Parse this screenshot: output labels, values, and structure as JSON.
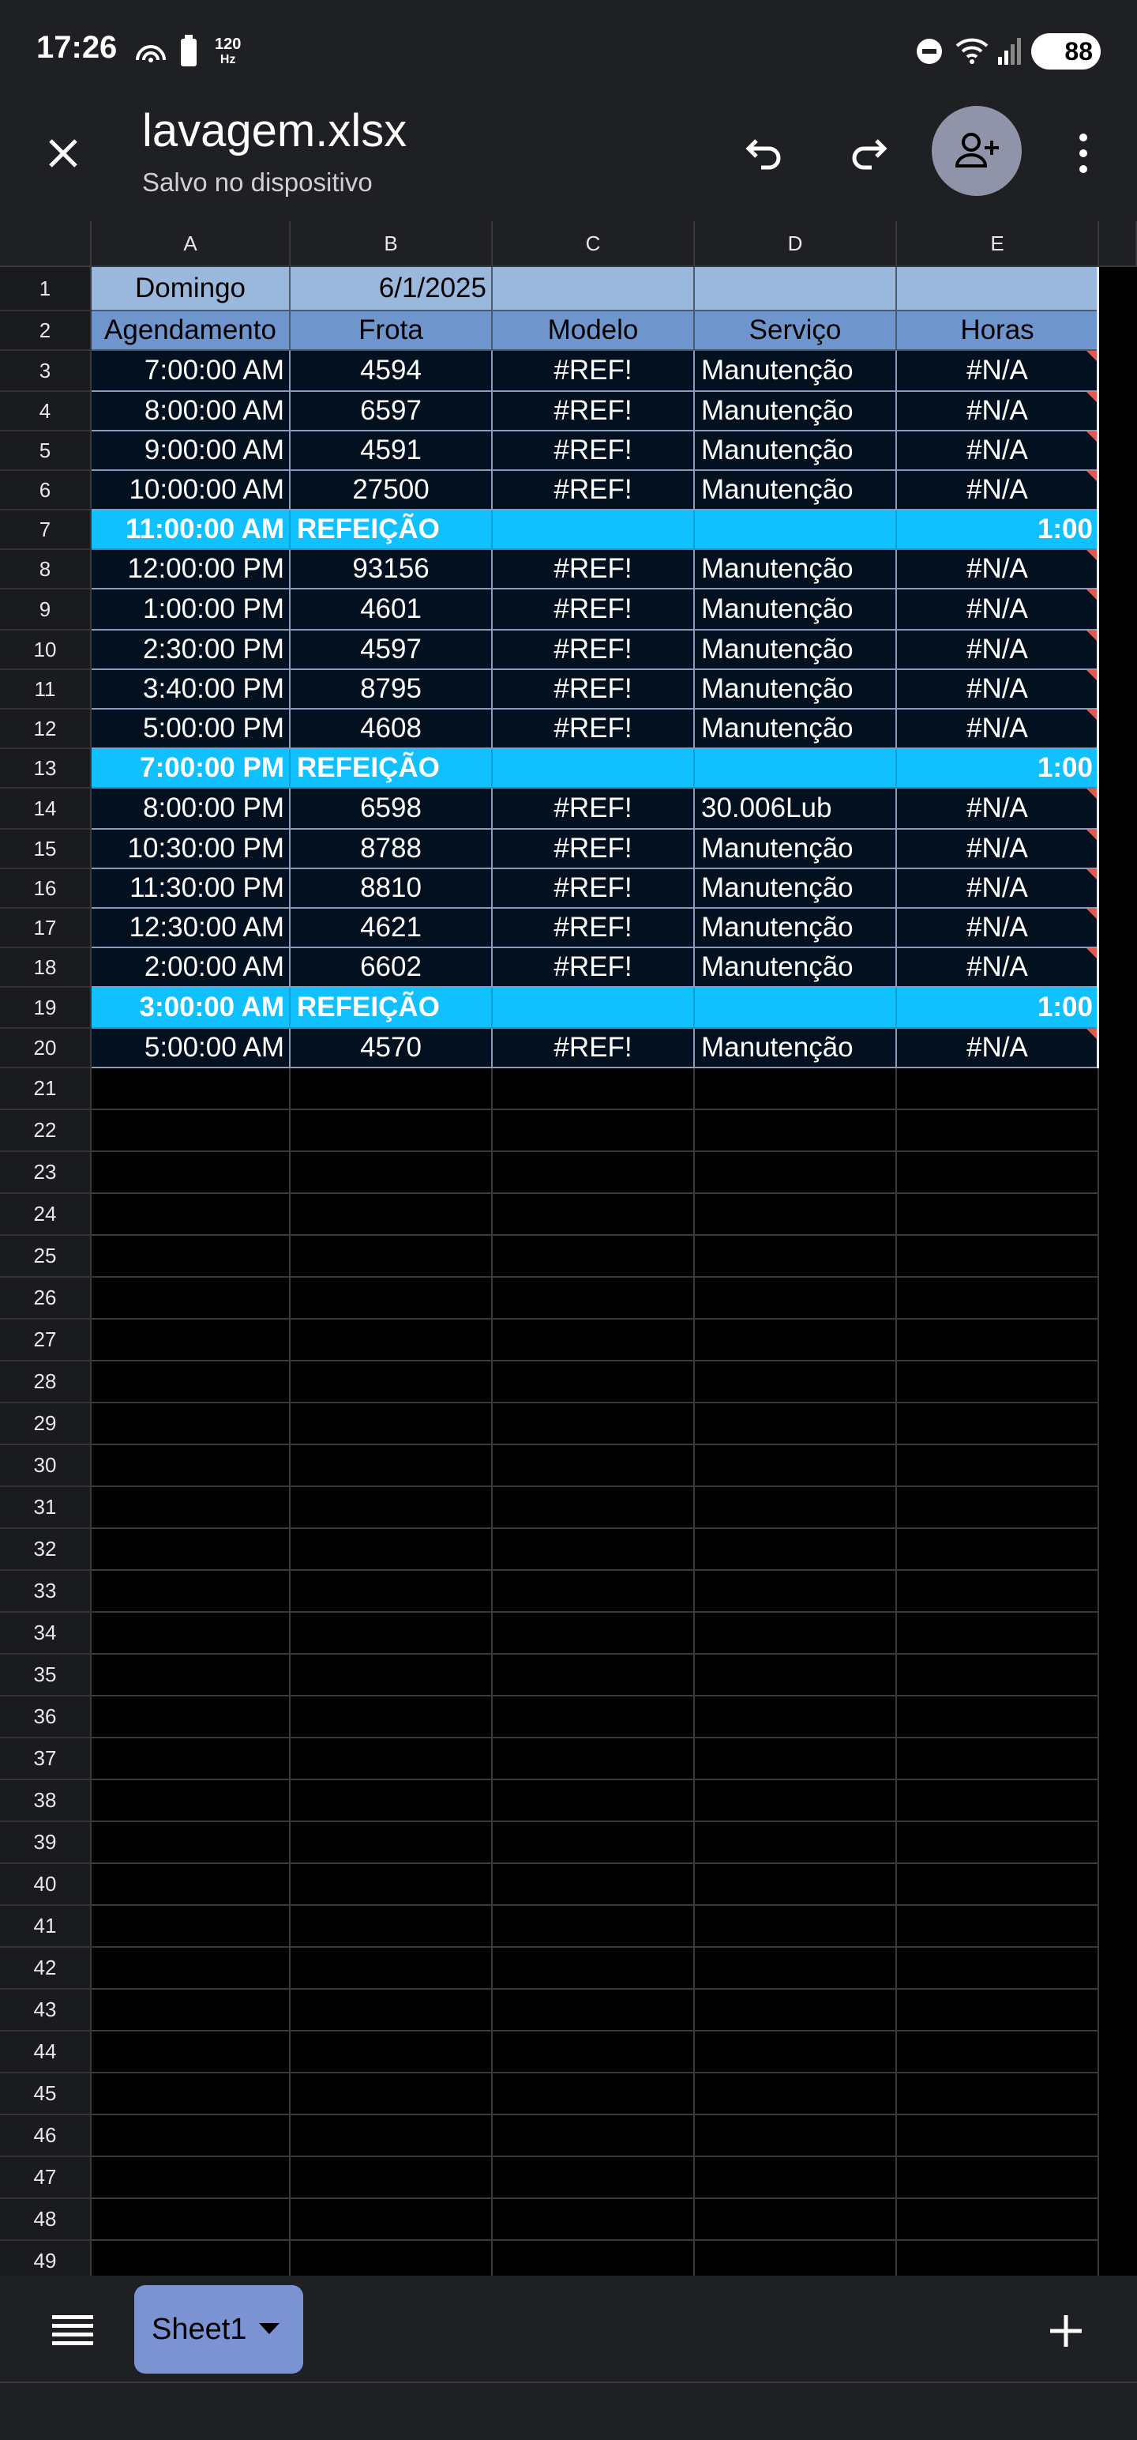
{
  "status": {
    "time": "17:26",
    "hz_top": "120",
    "hz_bottom": "Hz",
    "battery": "88"
  },
  "header": {
    "filename": "lavagem.xlsx",
    "subtitle": "Salvo no dispositivo"
  },
  "columns": [
    "A",
    "B",
    "C",
    "D",
    "E"
  ],
  "row_numbers": [
    "1",
    "2",
    "3",
    "4",
    "5",
    "6",
    "7",
    "8",
    "9",
    "10",
    "11",
    "12",
    "13",
    "14",
    "15",
    "16",
    "17",
    "18",
    "19",
    "20",
    "21",
    "22",
    "23",
    "24",
    "25",
    "26",
    "27",
    "28",
    "29",
    "30",
    "31",
    "32",
    "33",
    "34",
    "35",
    "36",
    "37",
    "38",
    "39",
    "40",
    "41",
    "42",
    "43",
    "44",
    "45",
    "46",
    "47",
    "48",
    "49"
  ],
  "sheet": {
    "title_row": [
      "Domingo",
      "6/1/2025",
      "",
      "",
      ""
    ],
    "header_row": [
      "Agendamento",
      "Frota",
      "Modelo",
      "Serviço",
      "Horas"
    ],
    "rows": [
      [
        "7:00:00 AM",
        "4594",
        "#REF!",
        "Manutenção",
        "#N/A"
      ],
      [
        "8:00:00 AM",
        "6597",
        "#REF!",
        "Manutenção",
        "#N/A"
      ],
      [
        "9:00:00 AM",
        "4591",
        "#REF!",
        "Manutenção",
        "#N/A"
      ],
      [
        "10:00:00 AM",
        "27500",
        "#REF!",
        "Manutenção",
        "#N/A"
      ],
      [
        "11:00:00 AM",
        "REFEIÇÃO",
        "",
        "",
        "1:00"
      ],
      [
        "12:00:00 PM",
        "93156",
        "#REF!",
        "Manutenção",
        "#N/A"
      ],
      [
        "1:00:00 PM",
        "4601",
        "#REF!",
        "Manutenção",
        "#N/A"
      ],
      [
        "2:30:00 PM",
        "4597",
        "#REF!",
        "Manutenção",
        "#N/A"
      ],
      [
        "3:40:00 PM",
        "8795",
        "#REF!",
        "Manutenção",
        "#N/A"
      ],
      [
        "5:00:00 PM",
        "4608",
        "#REF!",
        "Manutenção",
        "#N/A"
      ],
      [
        "7:00:00 PM",
        "REFEIÇÃO",
        "",
        "",
        "1:00"
      ],
      [
        "8:00:00 PM",
        "6598",
        "#REF!",
        "30.006Lub",
        "#N/A"
      ],
      [
        "10:30:00 PM",
        "8788",
        "#REF!",
        "Manutenção",
        "#N/A"
      ],
      [
        "11:30:00 PM",
        "8810",
        "#REF!",
        "Manutenção",
        "#N/A"
      ],
      [
        "12:30:00 AM",
        "4621",
        "#REF!",
        "Manutenção",
        "#N/A"
      ],
      [
        "2:00:00 AM",
        "6602",
        "#REF!",
        "Manutenção",
        "#N/A"
      ],
      [
        "3:00:00 AM",
        "REFEIÇÃO",
        "",
        "",
        "1:00"
      ],
      [
        "5:00:00 AM",
        "4570",
        "#REF!",
        "Manutenção",
        "#N/A"
      ]
    ],
    "meal_rows": [
      4,
      10,
      16
    ]
  },
  "tabs": {
    "active": "Sheet1"
  },
  "colors": {
    "meal": "#10c0ff",
    "title_bg": "#9ab8dc",
    "header_bg": "#6f96cc",
    "data_bg": "#02101f",
    "error_marker": "#e0594f"
  }
}
